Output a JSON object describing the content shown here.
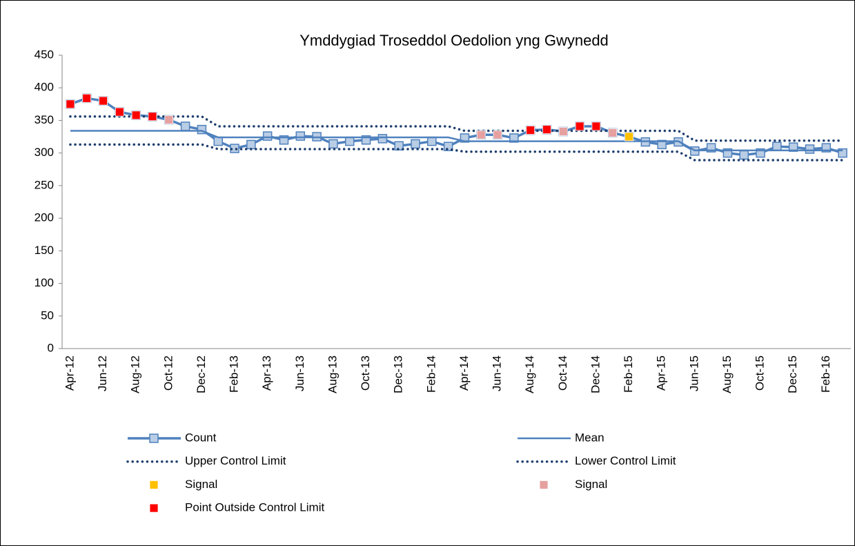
{
  "chart_data": {
    "type": "line",
    "title": "Ymddygiad Troseddol Oedolion yng Gwynedd",
    "categories": [
      "Apr-12",
      null,
      "Jun-12",
      null,
      "Aug-12",
      null,
      "Oct-12",
      null,
      "Dec-12",
      null,
      "Feb-13",
      null,
      "Apr-13",
      null,
      "Jun-13",
      null,
      "Aug-13",
      null,
      "Oct-13",
      null,
      "Dec-13",
      null,
      "Feb-14",
      null,
      "Apr-14",
      null,
      "Jun-14",
      null,
      "Aug-14",
      null,
      "Oct-14",
      null,
      "Dec-14",
      null,
      "Feb-15",
      null,
      "Apr-15",
      null,
      "Jun-15",
      null,
      "Aug-15",
      null,
      "Oct-15",
      null,
      "Dec-15",
      null,
      "Feb-16",
      null
    ],
    "ylim": [
      0,
      450
    ],
    "yticks": [
      0,
      50,
      100,
      150,
      200,
      250,
      300,
      350,
      400,
      450
    ],
    "grid": false,
    "series": [
      {
        "name": "Count",
        "color": "#4f81bd",
        "marker_fill": "#b9cde5",
        "style": "line-markers",
        "values": [
          375,
          384,
          380,
          363,
          358,
          356,
          351,
          341,
          336,
          318,
          307,
          313,
          326,
          320,
          326,
          325,
          314,
          318,
          320,
          322,
          311,
          314,
          318,
          310,
          323,
          328,
          328,
          323,
          335,
          336,
          333,
          341,
          341,
          331,
          325,
          317,
          313,
          317,
          303,
          308,
          300,
          297,
          300,
          310,
          309,
          306,
          308,
          300
        ]
      },
      {
        "name": "Mean",
        "color": "#4f81bd",
        "style": "line",
        "values": [
          334,
          334,
          334,
          334,
          334,
          334,
          334,
          334,
          334,
          324,
          324,
          324,
          324,
          324,
          324,
          324,
          324,
          324,
          324,
          324,
          324,
          324,
          324,
          324,
          318,
          318,
          318,
          318,
          318,
          318,
          318,
          318,
          318,
          318,
          318,
          318,
          318,
          318,
          304,
          304,
          304,
          304,
          304,
          304,
          304,
          304,
          304,
          304
        ]
      },
      {
        "name": "Upper Control Limit",
        "color": "#1f3f6e",
        "style": "dotted",
        "values": [
          356,
          356,
          356,
          356,
          356,
          356,
          356,
          356,
          356,
          341,
          341,
          341,
          341,
          341,
          341,
          341,
          341,
          341,
          341,
          341,
          341,
          341,
          341,
          341,
          334,
          334,
          334,
          334,
          334,
          334,
          334,
          334,
          334,
          334,
          334,
          334,
          334,
          334,
          319,
          319,
          319,
          319,
          319,
          319,
          319,
          319,
          319,
          319
        ]
      },
      {
        "name": "Lower Control Limit",
        "color": "#1f3f6e",
        "style": "dotted",
        "values": [
          313,
          313,
          313,
          313,
          313,
          313,
          313,
          313,
          313,
          306,
          306,
          306,
          306,
          306,
          306,
          306,
          306,
          306,
          306,
          306,
          306,
          306,
          306,
          306,
          302,
          302,
          302,
          302,
          302,
          302,
          302,
          302,
          302,
          302,
          302,
          302,
          302,
          302,
          289,
          289,
          289,
          289,
          289,
          289,
          289,
          289,
          289,
          289
        ]
      },
      {
        "name": "Signal",
        "color": "#ffc000",
        "style": "markers",
        "values": [
          null,
          null,
          null,
          null,
          null,
          null,
          null,
          null,
          null,
          null,
          null,
          null,
          null,
          null,
          null,
          null,
          null,
          null,
          null,
          null,
          null,
          null,
          null,
          null,
          null,
          null,
          null,
          null,
          null,
          null,
          null,
          null,
          null,
          null,
          325,
          null,
          null,
          null,
          null,
          null,
          null,
          null,
          null,
          null,
          null,
          null,
          null,
          null
        ]
      },
      {
        "name": "Signal",
        "color": "#e6a0a0",
        "style": "markers",
        "values": [
          null,
          null,
          null,
          null,
          null,
          null,
          351,
          null,
          null,
          null,
          null,
          null,
          null,
          null,
          null,
          null,
          null,
          null,
          null,
          null,
          null,
          null,
          null,
          null,
          null,
          328,
          328,
          null,
          null,
          null,
          333,
          null,
          null,
          331,
          null,
          null,
          null,
          null,
          null,
          null,
          null,
          null,
          null,
          null,
          null,
          null,
          null,
          null
        ]
      },
      {
        "name": "Point Outside Control Limit",
        "color": "#ff0000",
        "style": "markers",
        "values": [
          375,
          384,
          380,
          363,
          358,
          356,
          null,
          null,
          null,
          null,
          null,
          null,
          null,
          null,
          null,
          null,
          null,
          null,
          null,
          null,
          null,
          null,
          null,
          null,
          null,
          null,
          null,
          null,
          335,
          336,
          null,
          341,
          341,
          null,
          null,
          null,
          null,
          null,
          null,
          null,
          null,
          null,
          null,
          null,
          null,
          null,
          null,
          null
        ]
      }
    ]
  }
}
